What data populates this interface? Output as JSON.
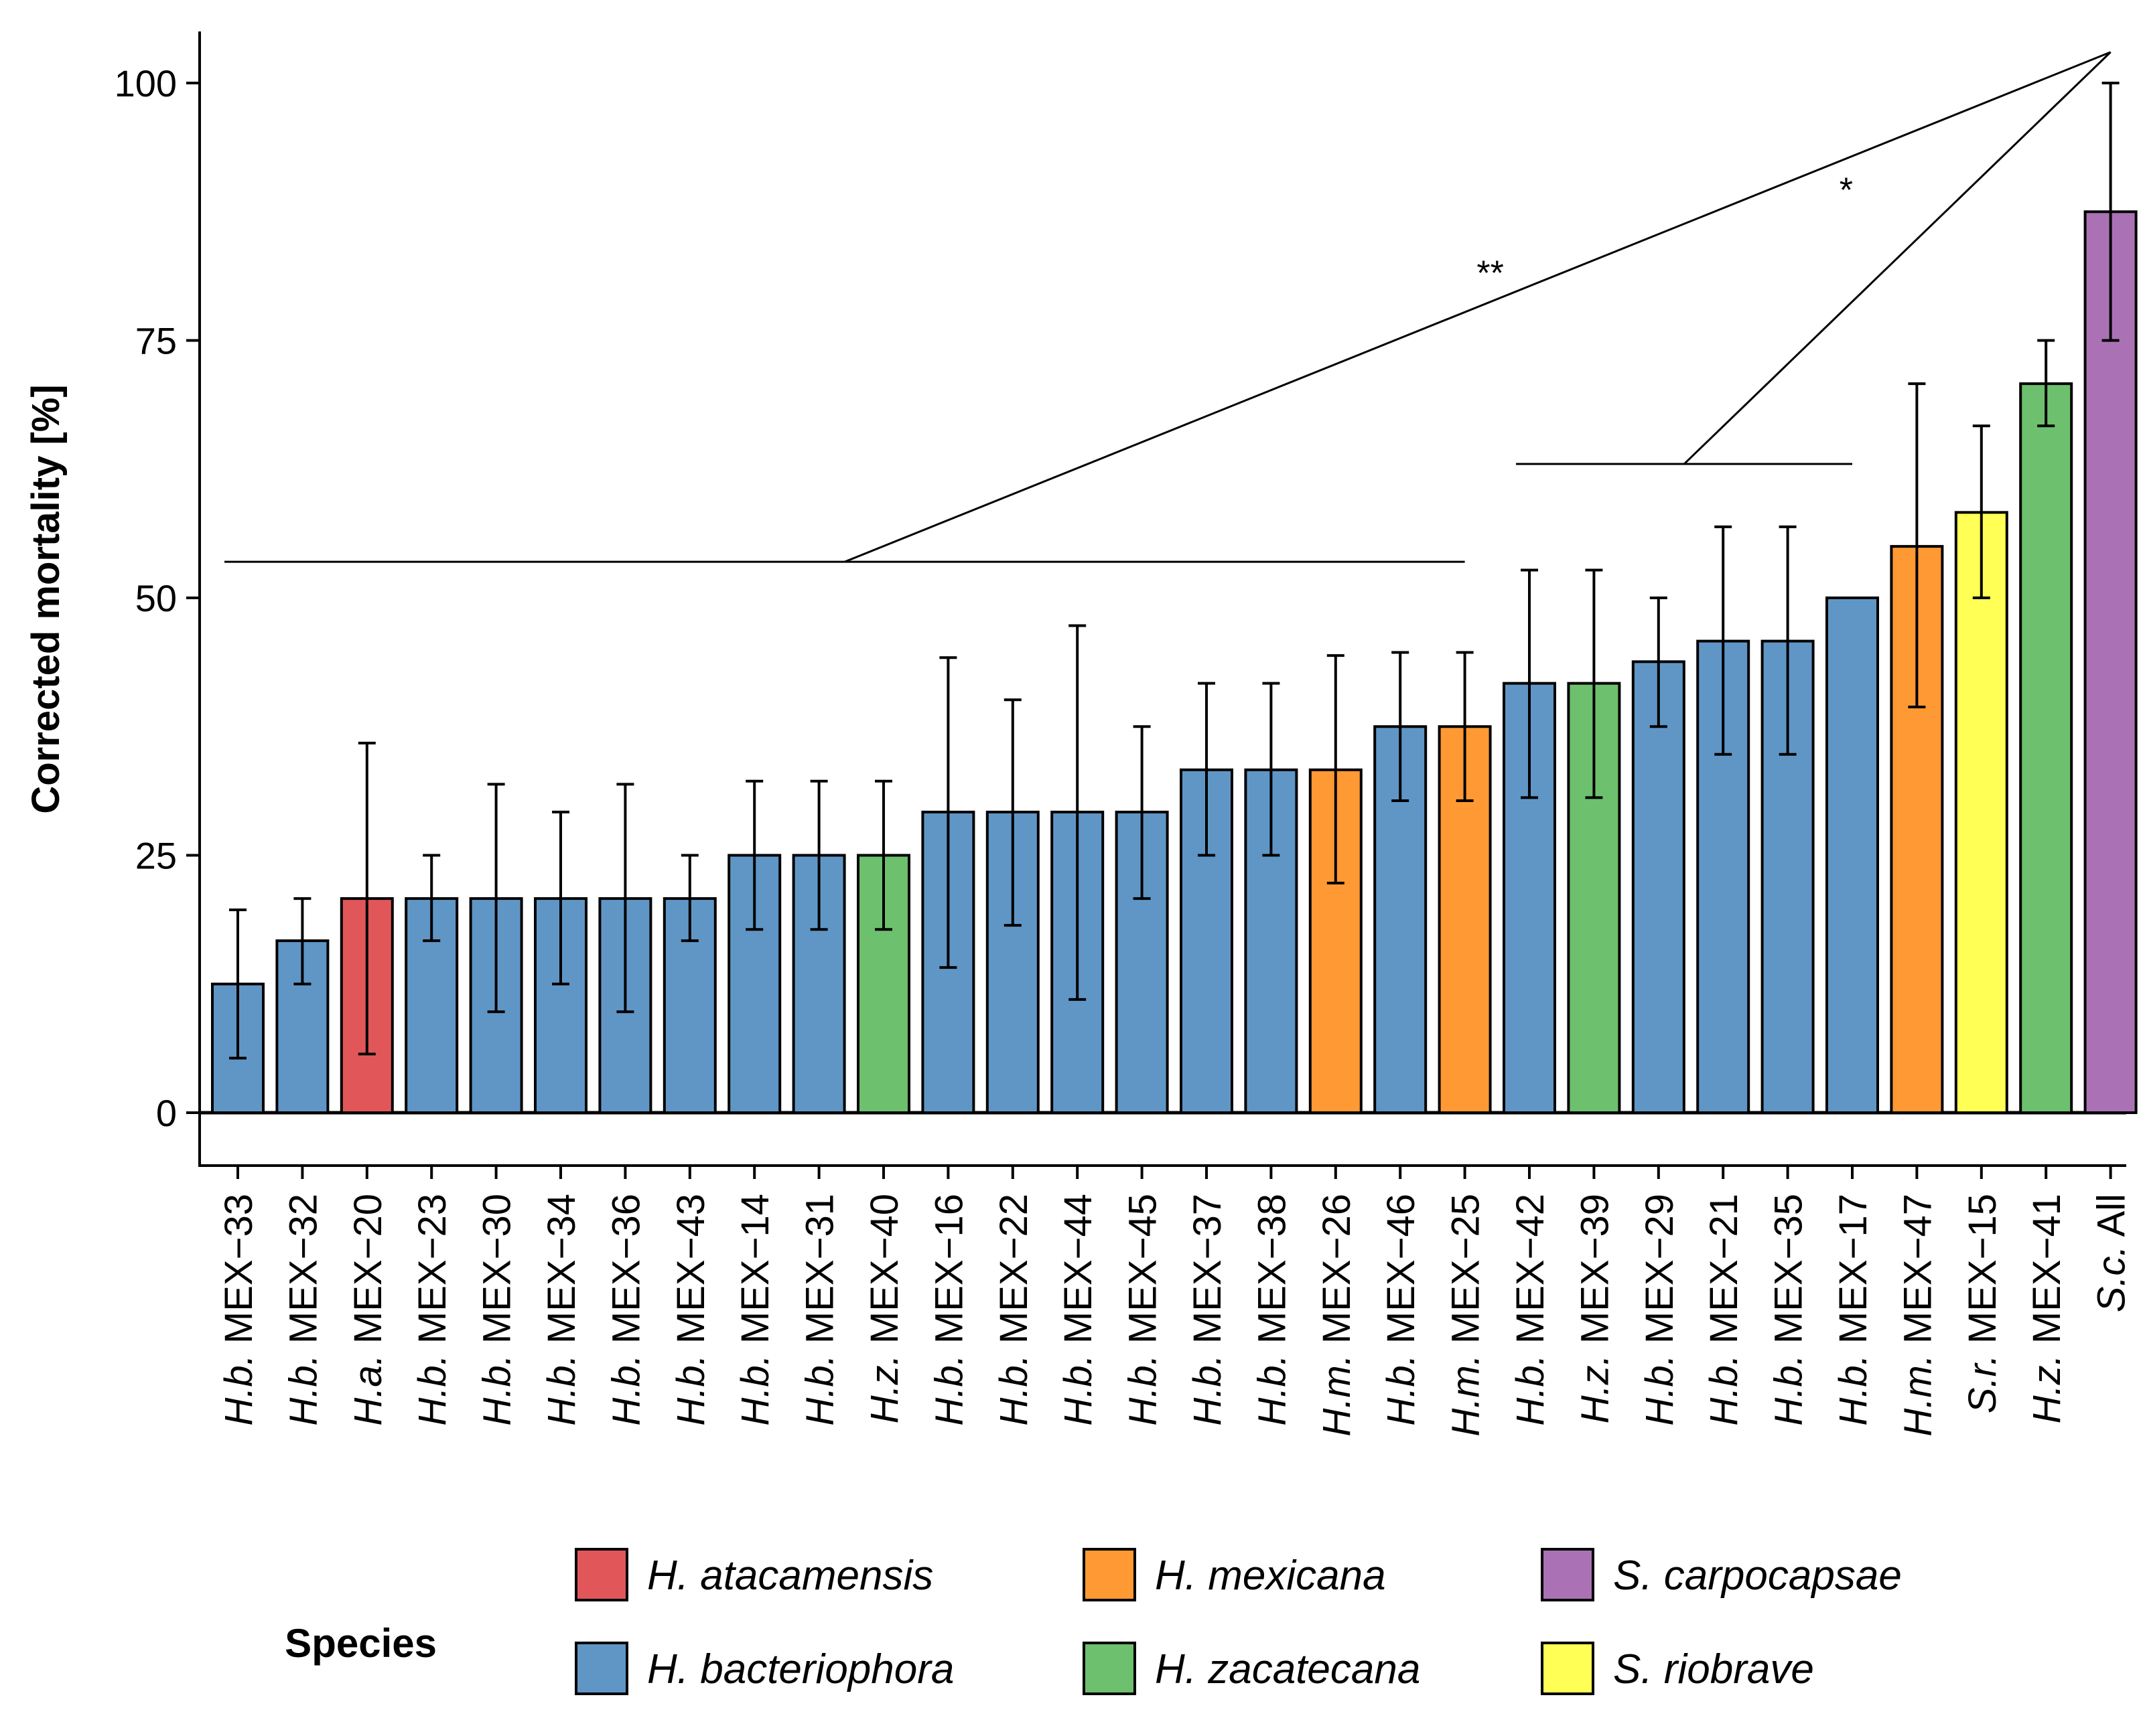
{
  "chart_data": {
    "type": "bar",
    "ylabel": "Corrected mortality [%]",
    "ylim": [
      -9,
      105
    ],
    "yticks": [
      0,
      25,
      50,
      75,
      100
    ],
    "categories": [
      {
        "species_abbr": "H.b.",
        "strain": "MEX−33",
        "species": "H. bacteriophora",
        "value": 12.5,
        "err_low": 5.3,
        "err_high": 19.7
      },
      {
        "species_abbr": "H.b.",
        "strain": "MEX−32",
        "species": "H. bacteriophora",
        "value": 16.7,
        "err_low": 12.5,
        "err_high": 20.8
      },
      {
        "species_abbr": "H.a.",
        "strain": "MEX−20",
        "species": "H. atacamensis",
        "value": 20.8,
        "err_low": 5.7,
        "err_high": 35.9
      },
      {
        "species_abbr": "H.b.",
        "strain": "MEX−23",
        "species": "H. bacteriophora",
        "value": 20.8,
        "err_low": 16.7,
        "err_high": 25.0
      },
      {
        "species_abbr": "H.b.",
        "strain": "MEX−30",
        "species": "H. bacteriophora",
        "value": 20.8,
        "err_low": 9.8,
        "err_high": 31.9
      },
      {
        "species_abbr": "H.b.",
        "strain": "MEX−34",
        "species": "H. bacteriophora",
        "value": 20.8,
        "err_low": 12.5,
        "err_high": 29.2
      },
      {
        "species_abbr": "H.b.",
        "strain": "MEX−36",
        "species": "H. bacteriophora",
        "value": 20.8,
        "err_low": 9.8,
        "err_high": 31.9
      },
      {
        "species_abbr": "H.b.",
        "strain": "MEX−43",
        "species": "H. bacteriophora",
        "value": 20.8,
        "err_low": 16.7,
        "err_high": 25.0
      },
      {
        "species_abbr": "H.b.",
        "strain": "MEX−14",
        "species": "H. bacteriophora",
        "value": 25.0,
        "err_low": 17.8,
        "err_high": 32.2
      },
      {
        "species_abbr": "H.b.",
        "strain": "MEX−31",
        "species": "H. bacteriophora",
        "value": 25.0,
        "err_low": 17.8,
        "err_high": 32.2
      },
      {
        "species_abbr": "H.z.",
        "strain": "MEX−40",
        "species": "H. zacatecana",
        "value": 25.0,
        "err_low": 17.8,
        "err_high": 32.2
      },
      {
        "species_abbr": "H.b.",
        "strain": "MEX−16",
        "species": "H. bacteriophora",
        "value": 29.2,
        "err_low": 14.1,
        "err_high": 44.2
      },
      {
        "species_abbr": "H.b.",
        "strain": "MEX−22",
        "species": "H. bacteriophora",
        "value": 29.2,
        "err_low": 18.2,
        "err_high": 40.1
      },
      {
        "species_abbr": "H.b.",
        "strain": "MEX−44",
        "species": "H. bacteriophora",
        "value": 29.2,
        "err_low": 11.0,
        "err_high": 47.3
      },
      {
        "species_abbr": "H.b.",
        "strain": "MEX−45",
        "species": "H. bacteriophora",
        "value": 29.2,
        "err_low": 20.8,
        "err_high": 37.5
      },
      {
        "species_abbr": "H.b.",
        "strain": "MEX−37",
        "species": "H. bacteriophora",
        "value": 33.3,
        "err_low": 25.0,
        "err_high": 41.7
      },
      {
        "species_abbr": "H.b.",
        "strain": "MEX−38",
        "species": "H. bacteriophora",
        "value": 33.3,
        "err_low": 25.0,
        "err_high": 41.7
      },
      {
        "species_abbr": "H.m.",
        "strain": "MEX−26",
        "species": "H. mexicana",
        "value": 33.3,
        "err_low": 22.3,
        "err_high": 44.4
      },
      {
        "species_abbr": "H.b.",
        "strain": "MEX−46",
        "species": "H. bacteriophora",
        "value": 37.5,
        "err_low": 30.3,
        "err_high": 44.7
      },
      {
        "species_abbr": "H.m.",
        "strain": "MEX−25",
        "species": "H. mexicana",
        "value": 37.5,
        "err_low": 30.3,
        "err_high": 44.7
      },
      {
        "species_abbr": "H.b.",
        "strain": "MEX−42",
        "species": "H. bacteriophora",
        "value": 41.7,
        "err_low": 30.6,
        "err_high": 52.7
      },
      {
        "species_abbr": "H.z.",
        "strain": "MEX−39",
        "species": "H. zacatecana",
        "value": 41.7,
        "err_low": 30.6,
        "err_high": 52.7
      },
      {
        "species_abbr": "H.b.",
        "strain": "MEX−29",
        "species": "H. bacteriophora",
        "value": 43.8,
        "err_low": 37.5,
        "err_high": 50.0
      },
      {
        "species_abbr": "H.b.",
        "strain": "MEX−21",
        "species": "H. bacteriophora",
        "value": 45.8,
        "err_low": 34.8,
        "err_high": 56.9
      },
      {
        "species_abbr": "H.b.",
        "strain": "MEX−35",
        "species": "H. bacteriophora",
        "value": 45.8,
        "err_low": 34.8,
        "err_high": 56.9
      },
      {
        "species_abbr": "H.b.",
        "strain": "MEX−17",
        "species": "H. bacteriophora",
        "value": 50.0,
        "err_low": null,
        "err_high": null
      },
      {
        "species_abbr": "H.m.",
        "strain": "MEX−47",
        "species": "H. mexicana",
        "value": 55.0,
        "err_low": 39.4,
        "err_high": 70.8
      },
      {
        "species_abbr": "S.r.",
        "strain": "MEX−15",
        "species": "S. riobrave",
        "value": 58.3,
        "err_low": 50.0,
        "err_high": 66.7
      },
      {
        "species_abbr": "H.z.",
        "strain": "MEX−41",
        "species": "H. zacatecana",
        "value": 70.8,
        "err_low": 66.7,
        "err_high": 75.0
      },
      {
        "species_abbr": "S.c.",
        "strain": "All",
        "species": "S. carpocapsae",
        "value": 87.5,
        "err_low": 75.0,
        "err_high": 100.0
      }
    ],
    "significance": [
      {
        "label": "**",
        "group_from": 0,
        "group_to": 19,
        "group_level": 53.5,
        "target": 29,
        "apex_level": 103
      },
      {
        "label": "*",
        "group_from": 20,
        "group_to": 25,
        "group_level": 63,
        "target": 29,
        "apex_level": 103
      }
    ],
    "legend": {
      "title": "Species",
      "placement": "bottom",
      "entries": [
        {
          "label": "H. atacamensis",
          "color": "#E15759"
        },
        {
          "label": "H. bacteriophora",
          "color": "#6096C6"
        },
        {
          "label": "H. mexicana",
          "color": "#FF9933"
        },
        {
          "label": "H. zacatecana",
          "color": "#6DC06D"
        },
        {
          "label": "S. carpocapsae",
          "color": "#AA72B5"
        },
        {
          "label": "S. riobrave",
          "color": "#FFFF55"
        }
      ]
    }
  }
}
